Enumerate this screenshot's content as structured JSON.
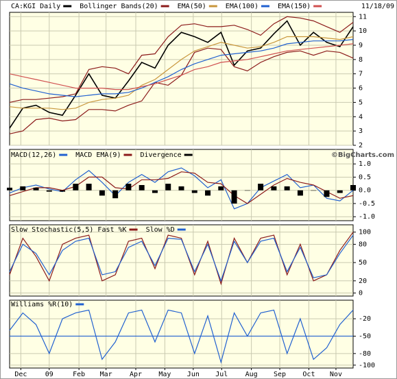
{
  "chart_data": [
    {
      "type": "line",
      "date": "11/18/09",
      "x": [
        0,
        2,
        4,
        6,
        8,
        10,
        12,
        14,
        16,
        18,
        20,
        22,
        24,
        26,
        28,
        30,
        32,
        34,
        36,
        38,
        40,
        42,
        44,
        46,
        48,
        50,
        52
      ],
      "xlim": [
        0,
        52
      ],
      "ylim": [
        2,
        11.3
      ],
      "yticks": [
        2,
        3,
        4,
        5,
        6,
        7,
        8,
        9,
        10,
        11
      ],
      "grid": true,
      "series": [
        {
          "name": "CA:KGI Daily",
          "color": "#000000",
          "values": [
            3.2,
            4.6,
            4.8,
            4.3,
            4.1,
            5.5,
            7.0,
            5.5,
            5.3,
            6.5,
            7.8,
            7.4,
            9.0,
            9.9,
            9.6,
            9.2,
            9.9,
            7.6,
            8.6,
            8.8,
            9.8,
            10.7,
            9.0,
            9.9,
            9.2,
            8.9,
            10.3
          ]
        },
        {
          "name": "Bollinger Bands(20)",
          "color": "#8b1a1a",
          "upper": [
            5.0,
            5.2,
            5.2,
            5.3,
            5.4,
            5.6,
            7.3,
            7.5,
            7.4,
            7.0,
            8.3,
            8.4,
            9.6,
            10.4,
            10.5,
            10.3,
            10.3,
            10.4,
            10.1,
            9.7,
            10.5,
            11.0,
            10.9,
            10.7,
            10.3,
            9.9,
            10.6
          ],
          "lower": [
            2.8,
            3.0,
            3.8,
            3.9,
            3.7,
            3.8,
            4.5,
            4.5,
            4.4,
            4.8,
            5.1,
            6.4,
            6.2,
            6.9,
            8.5,
            8.8,
            8.7,
            7.5,
            7.2,
            7.8,
            8.2,
            8.5,
            8.6,
            8.3,
            8.6,
            8.5,
            8.1
          ]
        },
        {
          "name": "EMA(50)",
          "color": "#c8963c",
          "values": [
            4.7,
            4.6,
            4.6,
            4.6,
            4.5,
            4.6,
            5.0,
            5.2,
            5.3,
            5.5,
            6.2,
            6.6,
            7.3,
            8.0,
            8.6,
            8.9,
            9.2,
            9.0,
            8.8,
            8.9,
            9.2,
            9.6,
            9.6,
            9.6,
            9.5,
            9.4,
            9.6
          ]
        },
        {
          "name": "EMA(100)",
          "color": "#2060d0",
          "values": [
            6.3,
            6.0,
            5.8,
            5.6,
            5.5,
            5.4,
            5.5,
            5.6,
            5.6,
            5.7,
            6.0,
            6.4,
            6.8,
            7.3,
            7.7,
            8.0,
            8.3,
            8.4,
            8.5,
            8.6,
            8.8,
            9.1,
            9.2,
            9.3,
            9.3,
            9.3,
            9.4
          ]
        },
        {
          "name": "EMA(150)",
          "color": "#d05050",
          "values": [
            7.0,
            6.8,
            6.6,
            6.4,
            6.2,
            6.0,
            6.0,
            6.0,
            5.9,
            5.9,
            6.1,
            6.3,
            6.6,
            6.9,
            7.3,
            7.5,
            7.8,
            7.9,
            8.0,
            8.2,
            8.4,
            8.6,
            8.7,
            8.8,
            8.9,
            9.0,
            9.1
          ]
        }
      ]
    },
    {
      "type": "line",
      "annotation": "©BigCharts.com",
      "x": [
        0,
        2,
        4,
        6,
        8,
        10,
        12,
        14,
        16,
        18,
        20,
        22,
        24,
        26,
        28,
        30,
        32,
        34,
        36,
        38,
        40,
        42,
        44,
        46,
        48,
        50,
        52
      ],
      "xlim": [
        0,
        52
      ],
      "ylim": [
        -1.15,
        1.55
      ],
      "yticks": [
        {
          "value": 1,
          "label": "1.0"
        },
        0.5,
        {
          "value": 0,
          "label": "0.0"
        },
        -0.5,
        {
          "value": -1,
          "label": "-1.0"
        }
      ],
      "grid": true,
      "series": [
        {
          "name": "MACD(12,26)",
          "color": "#2060d0",
          "values": [
            -0.1,
            0.1,
            0.2,
            0.05,
            -0.05,
            0.4,
            0.75,
            0.3,
            -0.2,
            0.3,
            0.6,
            0.3,
            0.7,
            0.85,
            0.55,
            0.1,
            0.4,
            -0.7,
            -0.5,
            0.1,
            0.35,
            0.6,
            0.1,
            0.2,
            -0.3,
            -0.4,
            0.0
          ]
        },
        {
          "name": "MACD EMA(9)",
          "color": "#8b1a1a",
          "values": [
            -0.2,
            -0.05,
            0.1,
            0.1,
            0.0,
            0.15,
            0.5,
            0.5,
            0.1,
            0.05,
            0.4,
            0.4,
            0.45,
            0.7,
            0.65,
            0.3,
            0.25,
            -0.2,
            -0.5,
            -0.15,
            0.2,
            0.45,
            0.3,
            0.2,
            -0.05,
            -0.3,
            -0.2
          ]
        },
        {
          "name": "Divergence",
          "color": "#000000",
          "style": "bar",
          "values": [
            0.1,
            0.15,
            0.1,
            -0.05,
            -0.05,
            0.25,
            0.25,
            -0.2,
            -0.3,
            0.25,
            0.2,
            -0.1,
            0.25,
            0.15,
            -0.1,
            -0.2,
            0.15,
            -0.5,
            0.0,
            0.25,
            0.15,
            0.15,
            -0.2,
            0.0,
            -0.25,
            -0.1,
            0.2
          ]
        }
      ]
    },
    {
      "type": "line",
      "x": [
        0,
        2,
        4,
        6,
        8,
        10,
        12,
        14,
        16,
        18,
        20,
        22,
        24,
        26,
        28,
        30,
        32,
        34,
        36,
        38,
        40,
        42,
        44,
        46,
        48,
        50,
        52
      ],
      "xlim": [
        0,
        52
      ],
      "ylim": [
        -5,
        112
      ],
      "yticks": [
        0,
        20,
        50,
        80,
        100
      ],
      "grid": true,
      "series": [
        {
          "name": "Slow Stochastic(5,5) Fast %K",
          "color": "#8b1a1a",
          "values": [
            30,
            90,
            60,
            20,
            80,
            90,
            95,
            20,
            30,
            85,
            90,
            40,
            95,
            90,
            30,
            85,
            15,
            90,
            50,
            90,
            95,
            30,
            80,
            20,
            30,
            70,
            100
          ]
        },
        {
          "name": "Slow %D",
          "color": "#2060d0",
          "values": [
            35,
            80,
            65,
            30,
            70,
            85,
            90,
            30,
            35,
            75,
            85,
            45,
            90,
            88,
            35,
            80,
            20,
            85,
            50,
            85,
            90,
            35,
            75,
            25,
            30,
            65,
            95
          ]
        }
      ]
    },
    {
      "type": "line",
      "x": [
        0,
        2,
        4,
        6,
        8,
        10,
        12,
        14,
        16,
        18,
        20,
        22,
        24,
        26,
        28,
        30,
        32,
        34,
        36,
        38,
        40,
        42,
        44,
        46,
        48,
        50,
        52
      ],
      "xlim": [
        0,
        52
      ],
      "xticks": [
        {
          "value": 1.7,
          "label": "Dec"
        },
        {
          "value": 6.0,
          "label": "09"
        },
        {
          "value": 10.5,
          "label": "Feb"
        },
        {
          "value": 14.6,
          "label": "Mar"
        },
        {
          "value": 19.1,
          "label": "Apr"
        },
        {
          "value": 23.5,
          "label": "May"
        },
        {
          "value": 27.8,
          "label": "Jun"
        },
        {
          "value": 32.1,
          "label": "Jul"
        },
        {
          "value": 36.6,
          "label": "Aug"
        },
        {
          "value": 40.9,
          "label": "Sep"
        },
        {
          "value": 45.3,
          "label": "Oct"
        },
        {
          "value": 49.4,
          "label": "Nov"
        }
      ],
      "ylim": [
        -105,
        12
      ],
      "yticks": [
        -20,
        -50,
        -80,
        -100
      ],
      "grid": true,
      "reference_line": -50,
      "reference_color": "#2060d0",
      "series": [
        {
          "name": "Williams %R(10)",
          "color": "#2060d0",
          "values": [
            -40,
            -10,
            -30,
            -80,
            -20,
            -10,
            -5,
            -90,
            -60,
            -10,
            -5,
            -60,
            -5,
            -10,
            -80,
            -15,
            -95,
            -10,
            -50,
            -10,
            -5,
            -80,
            -20,
            -90,
            -70,
            -30,
            -5
          ]
        }
      ]
    }
  ]
}
